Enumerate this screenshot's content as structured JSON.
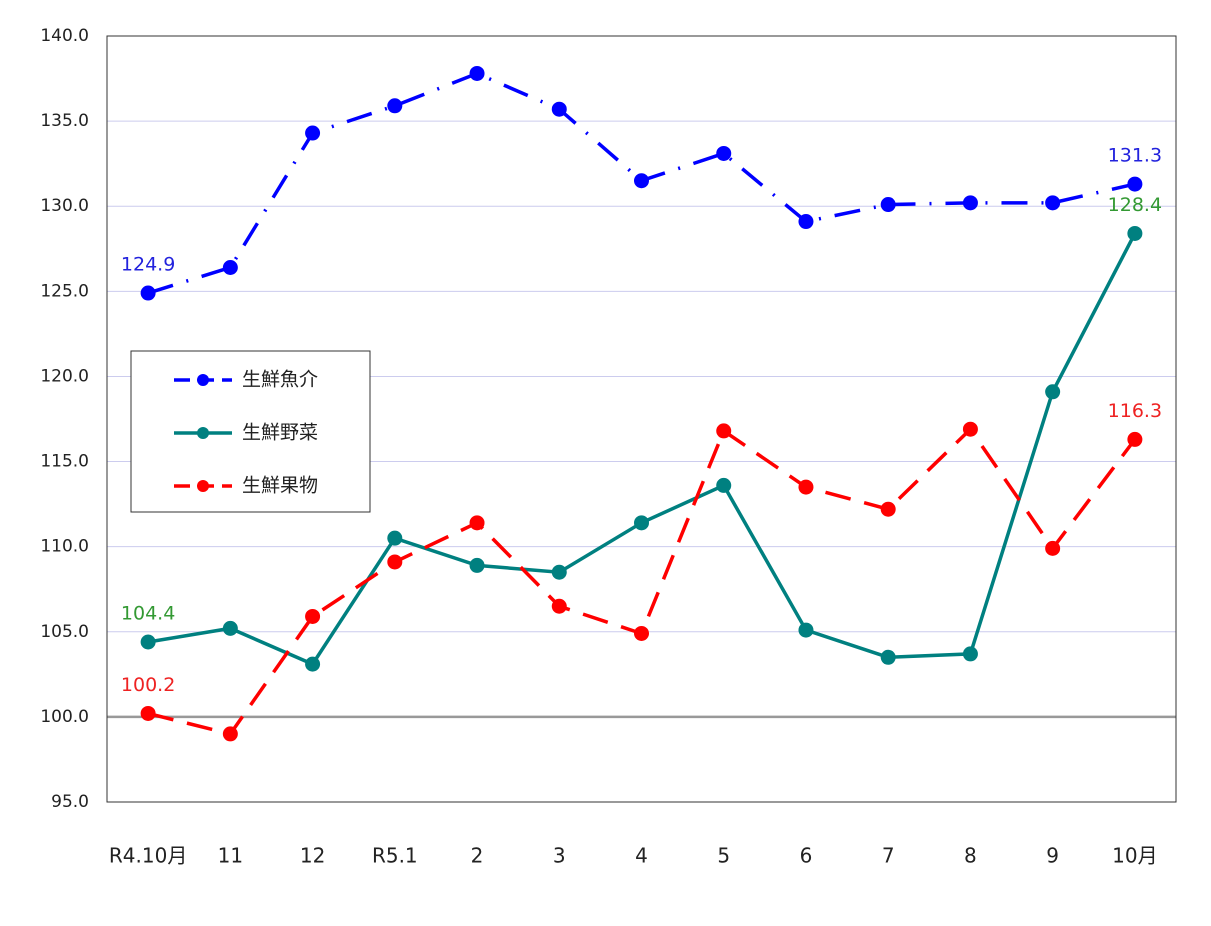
{
  "chart_data": {
    "type": "line",
    "categories": [
      "R4.10月",
      "11",
      "12",
      "R5.1",
      "2",
      "3",
      "4",
      "5",
      "6",
      "7",
      "8",
      "9",
      "10月"
    ],
    "series": [
      {
        "name": "生鮮魚介",
        "color": "#0000ff",
        "label_color": "#2222dd",
        "style": "dashdot",
        "values": [
          124.9,
          126.4,
          134.3,
          135.9,
          137.8,
          135.7,
          131.5,
          133.1,
          129.1,
          130.1,
          130.2,
          130.2,
          131.3
        ],
        "value_labels": [
          "124.9",
          null,
          null,
          null,
          null,
          null,
          null,
          null,
          null,
          null,
          null,
          null,
          "131.3"
        ]
      },
      {
        "name": "生鮮野菜",
        "color": "#008080",
        "label_color": "#339933",
        "style": "solid",
        "values": [
          104.4,
          105.2,
          103.1,
          110.5,
          108.9,
          108.5,
          111.4,
          113.6,
          105.1,
          103.5,
          103.7,
          119.1,
          128.4
        ],
        "value_labels": [
          "104.4",
          null,
          null,
          null,
          null,
          null,
          null,
          null,
          null,
          null,
          null,
          null,
          "128.4"
        ]
      },
      {
        "name": "生鮮果物",
        "color": "#ff0000",
        "label_color": "#ee2222",
        "style": "dashed",
        "values": [
          100.2,
          99.0,
          105.9,
          109.1,
          111.4,
          106.5,
          104.9,
          116.8,
          113.5,
          112.2,
          116.9,
          109.9,
          116.3
        ],
        "value_labels": [
          "100.2",
          null,
          null,
          null,
          null,
          null,
          null,
          null,
          null,
          null,
          null,
          null,
          "116.3"
        ]
      }
    ],
    "ylim": [
      95,
      140
    ],
    "yticks": [
      {
        "value": 95,
        "label": "95.0"
      },
      {
        "value": 100,
        "label": "100.0"
      },
      {
        "value": 105,
        "label": "105.0"
      },
      {
        "value": 110,
        "label": "110.0"
      },
      {
        "value": 115,
        "label": "115.0"
      },
      {
        "value": 120,
        "label": "120.0"
      },
      {
        "value": 125,
        "label": "125.0"
      },
      {
        "value": 130,
        "label": "130.0"
      },
      {
        "value": 135,
        "label": "135.0"
      },
      {
        "value": 140,
        "label": "140.0"
      }
    ],
    "grid": true,
    "grid_color": "#ccccee",
    "hline": 100,
    "hline_color": "#999999",
    "legend": "left"
  }
}
